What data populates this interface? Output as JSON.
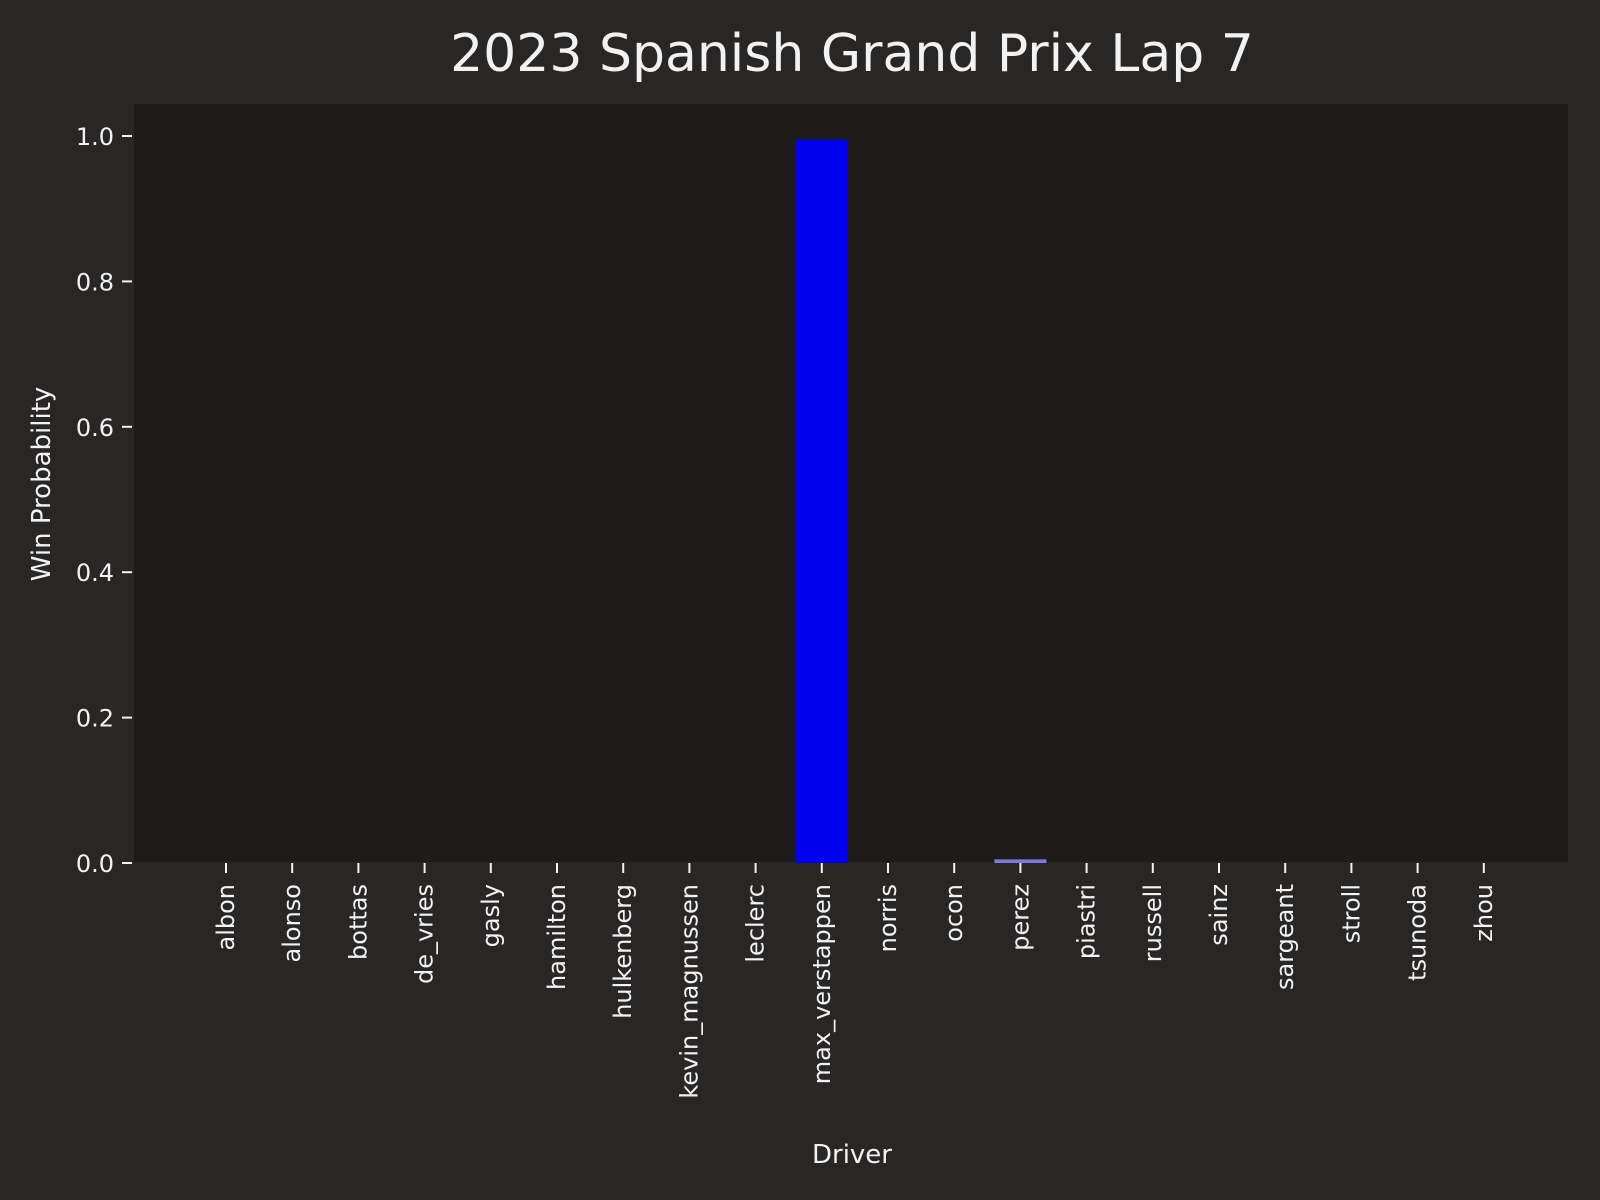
{
  "chart_data": {
    "type": "bar",
    "title": "2023 Spanish Grand Prix Lap 7",
    "xlabel": "Driver",
    "ylabel": "Win Probability",
    "ylim": [
      0,
      1.04
    ],
    "yticks": [
      "0.0",
      "0.2",
      "0.4",
      "0.6",
      "0.8",
      "1.0"
    ],
    "grid": false,
    "categories": [
      "albon",
      "alonso",
      "bottas",
      "de_vries",
      "gasly",
      "hamilton",
      "hulkenberg",
      "kevin_magnussen",
      "leclerc",
      "max_verstappen",
      "norris",
      "ocon",
      "perez",
      "piastri",
      "russell",
      "sainz",
      "sargeant",
      "stroll",
      "tsunoda",
      "zhou"
    ],
    "values": [
      0,
      0,
      0,
      0,
      0,
      0,
      0,
      0,
      0,
      0.995,
      0,
      0,
      0.005,
      0,
      0,
      0,
      0,
      0,
      0,
      0
    ],
    "bar_colors": [
      "#0000ff",
      "#0000ff",
      "#0000ff",
      "#0000ff",
      "#0000ff",
      "#0000ff",
      "#0000ff",
      "#0000ff",
      "#0000ff",
      "#0000ee",
      "#0000ff",
      "#0000ff",
      "#7b7bdf",
      "#0000ff",
      "#0000ff",
      "#0000ff",
      "#0000ff",
      "#0000ff",
      "#0000ff",
      "#0000ff"
    ],
    "colors": {
      "figure_background": "#292626",
      "plot_background": "#1d1c1b",
      "text": "#f2f2f2",
      "tick": "#f2f2f2"
    }
  }
}
